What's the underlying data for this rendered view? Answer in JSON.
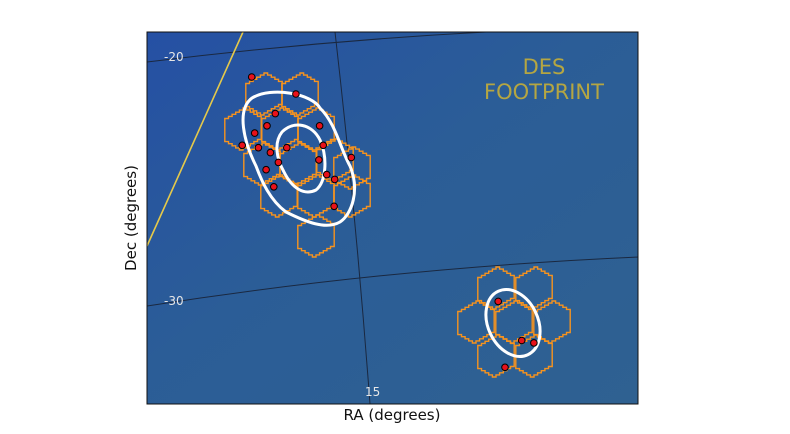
{
  "chart_data": {
    "type": "scatter",
    "title": "",
    "xlabel": "RA (degrees)",
    "ylabel": "Dec (degrees)",
    "projection": "sky map (curved RA/Dec graticule)",
    "x_ticks": [
      "15"
    ],
    "y_ticks": [
      "-20",
      "-30"
    ],
    "grid": true,
    "background": "dark blue sky map",
    "annotation": {
      "lines": [
        "DES",
        "FOOTPRINT"
      ],
      "color": "#b5a642"
    },
    "colors": {
      "footprint_boundary": "#e5c94a",
      "pointings": "#f7931e",
      "contours": "#ffffff",
      "points_fill": "#e8111a",
      "points_edge": "#000000",
      "grid": "#1a2840"
    },
    "series": [
      {
        "marker": "circle",
        "points": [
          {
            "ra": 17.6,
            "dec": -20.9
          },
          {
            "ra": 16.5,
            "dec": -21.6
          },
          {
            "ra": 17.0,
            "dec": -22.4
          },
          {
            "ra": 17.2,
            "dec": -22.9
          },
          {
            "ra": 17.5,
            "dec": -23.2
          },
          {
            "ra": 17.4,
            "dec": -23.8
          },
          {
            "ra": 17.8,
            "dec": -23.7
          },
          {
            "ra": 16.7,
            "dec": -23.8
          },
          {
            "ra": 17.1,
            "dec": -24.0
          },
          {
            "ra": 16.9,
            "dec": -24.4
          },
          {
            "ra": 17.2,
            "dec": -24.7
          },
          {
            "ra": 17.0,
            "dec": -25.4
          },
          {
            "ra": 15.9,
            "dec": -22.9
          },
          {
            "ra": 15.8,
            "dec": -23.7
          },
          {
            "ra": 15.9,
            "dec": -24.3
          },
          {
            "ra": 15.7,
            "dec": -24.9
          },
          {
            "ra": 15.5,
            "dec": -25.1
          },
          {
            "ra": 15.1,
            "dec": -24.2
          },
          {
            "ra": 15.5,
            "dec": -26.2
          },
          {
            "ra": 11.4,
            "dec": -30.1
          },
          {
            "ra": 10.8,
            "dec": -31.7
          },
          {
            "ra": 10.5,
            "dec": -31.8
          },
          {
            "ra": 11.2,
            "dec": -32.8
          }
        ]
      }
    ]
  }
}
